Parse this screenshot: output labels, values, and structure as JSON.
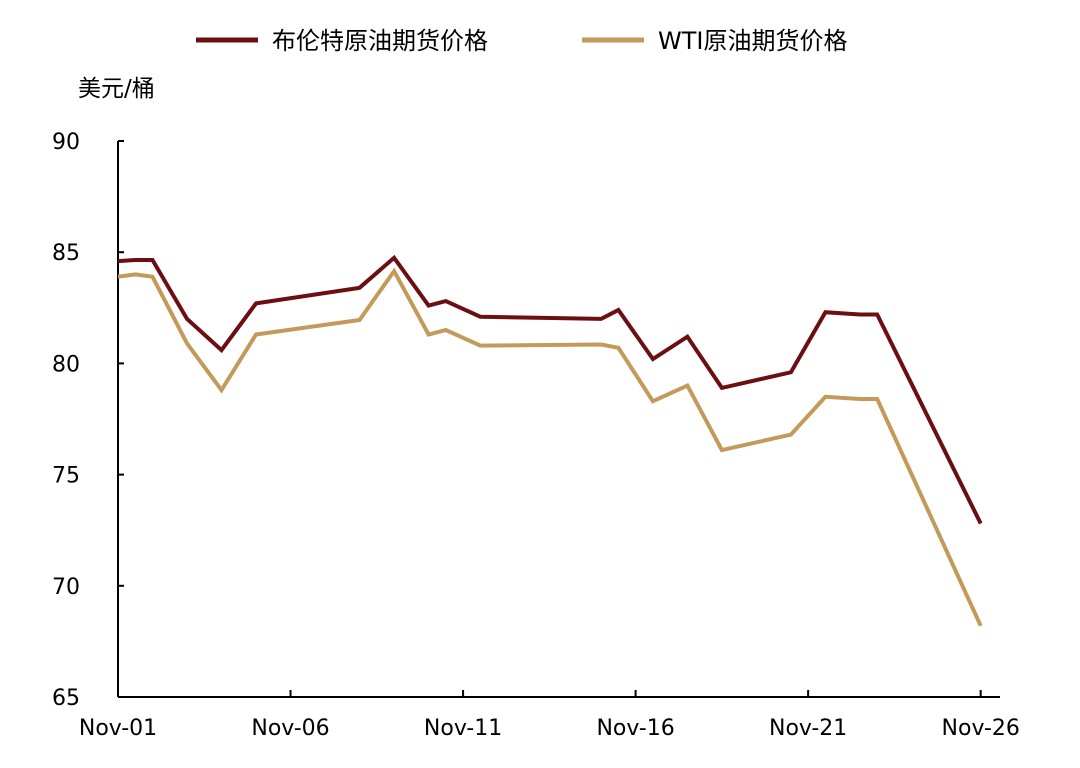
{
  "chart_data": {
    "type": "line",
    "title": "",
    "ylabel": "美元/桶",
    "xlabel": "",
    "ylim": [
      65,
      90
    ],
    "yticks": [
      65,
      70,
      75,
      80,
      85,
      90
    ],
    "grid": false,
    "legend_position": "top",
    "x_range": [
      1,
      26.56
    ],
    "x_ticks": [
      {
        "x": 1,
        "label": "Nov-01"
      },
      {
        "x": 6,
        "label": "Nov-06"
      },
      {
        "x": 11,
        "label": "Nov-11"
      },
      {
        "x": 16,
        "label": "Nov-16"
      },
      {
        "x": 21,
        "label": "Nov-21"
      },
      {
        "x": 26,
        "label": "Nov-26"
      }
    ],
    "series": [
      {
        "name": "布伦特原油期货价格",
        "color": "#6B0F13",
        "points": [
          [
            1,
            84.6
          ],
          [
            1.5,
            84.65
          ],
          [
            2,
            84.65
          ],
          [
            3,
            82.0
          ],
          [
            4,
            80.6
          ],
          [
            5,
            82.7
          ],
          [
            8,
            83.4
          ],
          [
            9,
            84.75
          ],
          [
            10,
            82.6
          ],
          [
            10.5,
            82.8
          ],
          [
            11.5,
            82.1
          ],
          [
            15,
            82.0
          ],
          [
            15.5,
            82.4
          ],
          [
            16.5,
            80.2
          ],
          [
            17.5,
            81.2
          ],
          [
            18.5,
            78.9
          ],
          [
            20.5,
            79.6
          ],
          [
            21.5,
            82.3
          ],
          [
            22.5,
            82.2
          ],
          [
            23,
            82.2
          ],
          [
            26,
            72.8
          ]
        ]
      },
      {
        "name": "WTI原油期货价格",
        "color": "#C49A5A",
        "points": [
          [
            1,
            83.9
          ],
          [
            1.5,
            84.0
          ],
          [
            2,
            83.9
          ],
          [
            3,
            80.9
          ],
          [
            4,
            78.8
          ],
          [
            5,
            81.3
          ],
          [
            8,
            81.95
          ],
          [
            9,
            84.15
          ],
          [
            10,
            81.3
          ],
          [
            10.5,
            81.5
          ],
          [
            11.5,
            80.8
          ],
          [
            15,
            80.85
          ],
          [
            15.5,
            80.7
          ],
          [
            16.5,
            78.3
          ],
          [
            17.5,
            79.0
          ],
          [
            18.5,
            76.1
          ],
          [
            20.5,
            76.8
          ],
          [
            21.5,
            78.5
          ],
          [
            22.5,
            78.4
          ],
          [
            23,
            78.4
          ],
          [
            26,
            68.2
          ]
        ]
      }
    ]
  }
}
